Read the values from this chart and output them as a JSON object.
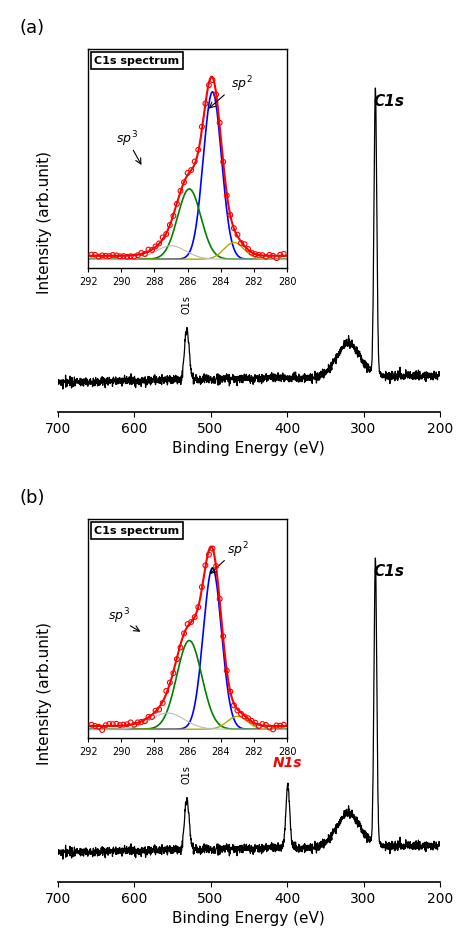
{
  "panel_a_label": "(a)",
  "panel_b_label": "(b)",
  "xlabel": "Binding Energy (eV)",
  "ylabel": "Intensity (arb.unit)",
  "xlim": [
    700,
    200
  ],
  "inset_title": "C1s spectrum",
  "sp2_label": "$sp^2$",
  "sp3_label": "$sp^3$",
  "c1s_label": "C1s",
  "o1s_label": "O1s",
  "n1s_label": "N1s",
  "n1s_color": "#ff0000",
  "background_color": "#ffffff",
  "tick_major": [
    700,
    600,
    500,
    400,
    300,
    200
  ],
  "inset_ticks": [
    292,
    290,
    288,
    286,
    284,
    282,
    280
  ]
}
